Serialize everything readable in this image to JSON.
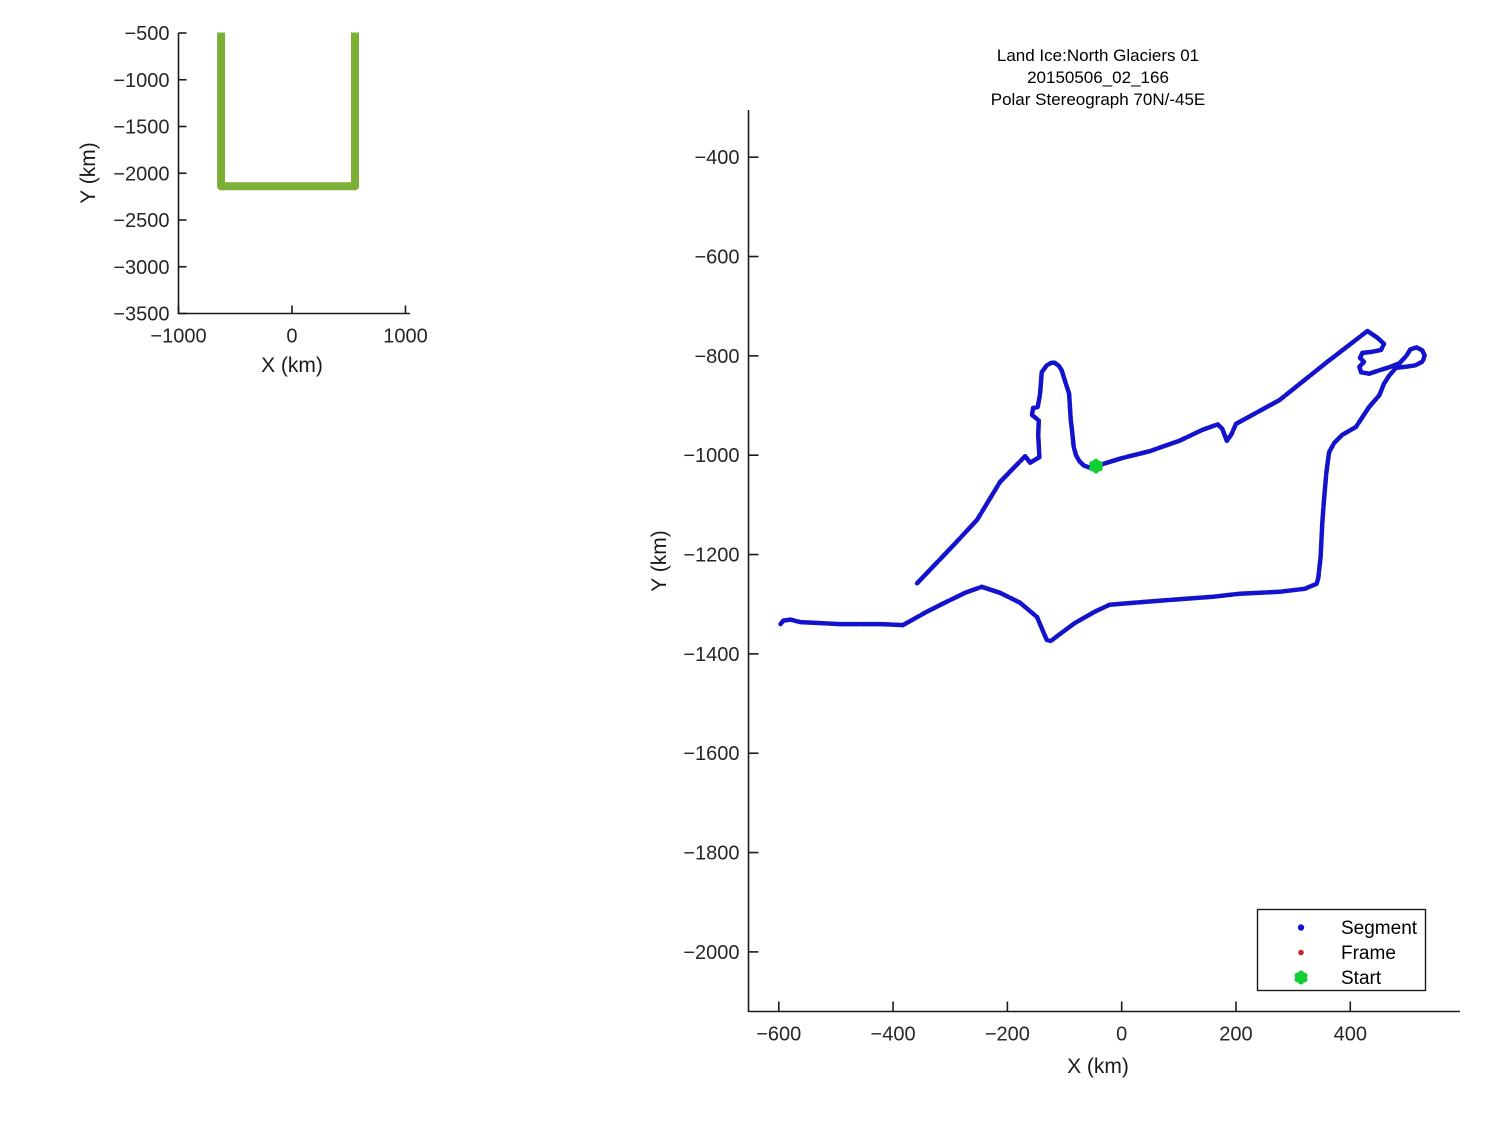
{
  "figure": {
    "background": "#FFFFFF"
  },
  "chart_data": [
    {
      "name": "overview-locator",
      "type": "line",
      "title": "",
      "xlabel": "X (km)",
      "ylabel": "Y (km)",
      "xlim": [
        -1000,
        1040
      ],
      "ylim": [
        -3500,
        -500
      ],
      "grid": false,
      "xticks": [
        -1000,
        0,
        1000
      ],
      "xtick_labels": [
        "−1000",
        "0",
        "1000"
      ],
      "yticks": [
        -500,
        -1000,
        -1500,
        -2000,
        -2500,
        -3000,
        -3500
      ],
      "ytick_labels": [
        "−500",
        "−1000",
        "−1500",
        "−2000",
        "−2500",
        "−3000",
        "−3500"
      ],
      "series": [
        {
          "name": "coverage-outline",
          "color": "#7CAF35",
          "width": 8,
          "dash": null,
          "points": [
            [
              -625,
              -500
            ],
            [
              -625,
              -2140
            ],
            [
              555,
              -2140
            ],
            [
              555,
              -500
            ]
          ]
        }
      ],
      "markers": []
    },
    {
      "name": "flight-track",
      "type": "line",
      "title_lines": [
        "Land Ice:North Glaciers 01",
        "20150506_02_166",
        "Polar Stereograph 70N/-45E"
      ],
      "xlabel": "X (km)",
      "ylabel": "Y (km)",
      "xlim": [
        -653,
        592
      ],
      "ylim": [
        -2120,
        -305
      ],
      "grid": false,
      "xticks": [
        -600,
        -400,
        -200,
        0,
        200,
        400
      ],
      "xtick_labels": [
        "−600",
        "−400",
        "−200",
        "0",
        "200",
        "400"
      ],
      "yticks": [
        -400,
        -600,
        -800,
        -1000,
        -1200,
        -1400,
        -1600,
        -1800,
        -2000
      ],
      "ytick_labels": [
        "−400",
        "−600",
        "−800",
        "−1000",
        "−1200",
        "−1400",
        "−1600",
        "−1800",
        "−2000"
      ],
      "legend": {
        "position": "bottom-right",
        "entries": [
          {
            "label": "Segment",
            "marker": "dot",
            "color": "#1313CE"
          },
          {
            "label": "Frame",
            "marker": "dot",
            "color": "#CC2222"
          },
          {
            "label": "Start",
            "marker": "burst",
            "color": "#12CF34"
          }
        ]
      },
      "series": [
        {
          "name": "segment-track",
          "color": "#1313CE",
          "width": 4.5,
          "dash": "30 2.2",
          "points": [
            [
              -358,
              -1258
            ],
            [
              -295,
              -1182
            ],
            [
              -253,
              -1130
            ],
            [
              -213,
              -1054
            ],
            [
              -169,
              -1002
            ],
            [
              -160,
              -1015
            ],
            [
              -150,
              -1008
            ],
            [
              -144,
              -1004
            ],
            [
              -146,
              -960
            ],
            [
              -145,
              -930
            ],
            [
              -157,
              -919
            ],
            [
              -155,
              -905
            ],
            [
              -147,
              -903
            ],
            [
              -143,
              -878
            ],
            [
              -141,
              -850
            ],
            [
              -140,
              -833
            ],
            [
              -131,
              -819
            ],
            [
              -123,
              -814
            ],
            [
              -117,
              -814
            ],
            [
              -110,
              -820
            ],
            [
              -105,
              -829
            ],
            [
              -98,
              -855
            ],
            [
              -92,
              -876
            ],
            [
              -89,
              -930
            ],
            [
              -87,
              -950
            ],
            [
              -84,
              -983
            ],
            [
              -80,
              -1000
            ],
            [
              -74,
              -1012
            ],
            [
              -66,
              -1021
            ],
            [
              -56,
              -1025
            ],
            [
              -45,
              -1022
            ],
            [
              -20,
              -1013
            ],
            [
              0,
              -1006
            ],
            [
              49,
              -992
            ],
            [
              101,
              -971
            ],
            [
              141,
              -949
            ],
            [
              168,
              -938
            ],
            [
              176,
              -947
            ],
            [
              184,
              -971
            ],
            [
              192,
              -958
            ],
            [
              200,
              -937
            ],
            [
              276,
              -889
            ],
            [
              360,
              -812
            ],
            [
              430,
              -750
            ],
            [
              447,
              -763
            ],
            [
              459,
              -776
            ],
            [
              454,
              -788
            ],
            [
              437,
              -792
            ],
            [
              421,
              -794
            ],
            [
              417,
              -804
            ],
            [
              424,
              -812
            ],
            [
              416,
              -822
            ],
            [
              419,
              -833
            ],
            [
              433,
              -836
            ],
            [
              451,
              -829
            ],
            [
              468,
              -823
            ],
            [
              486,
              -815
            ],
            [
              498,
              -800
            ],
            [
              505,
              -787
            ],
            [
              516,
              -783
            ],
            [
              526,
              -789
            ],
            [
              530,
              -799
            ],
            [
              527,
              -811
            ],
            [
              514,
              -819
            ],
            [
              497,
              -822
            ],
            [
              480,
              -824
            ],
            [
              468,
              -840
            ],
            [
              459,
              -856
            ],
            [
              451,
              -879
            ],
            [
              433,
              -903
            ],
            [
              410,
              -943
            ],
            [
              386,
              -959
            ],
            [
              372,
              -975
            ],
            [
              363,
              -994
            ],
            [
              358,
              -1036
            ],
            [
              354,
              -1090
            ],
            [
              351,
              -1136
            ],
            [
              348,
              -1205
            ],
            [
              344,
              -1247
            ],
            [
              341,
              -1259
            ],
            [
              320,
              -1269
            ],
            [
              276,
              -1275
            ],
            [
              206,
              -1279
            ],
            [
              159,
              -1285
            ],
            [
              66,
              -1293
            ],
            [
              -21,
              -1301
            ],
            [
              -47,
              -1315
            ],
            [
              -82,
              -1338
            ],
            [
              -108,
              -1360
            ],
            [
              -124,
              -1374
            ],
            [
              -131,
              -1372
            ],
            [
              -143,
              -1340
            ],
            [
              -148,
              -1326
            ],
            [
              -178,
              -1297
            ],
            [
              -213,
              -1277
            ],
            [
              -245,
              -1265
            ],
            [
              -274,
              -1277
            ],
            [
              -306,
              -1295
            ],
            [
              -341,
              -1315
            ],
            [
              -370,
              -1334
            ],
            [
              -383,
              -1342
            ],
            [
              -423,
              -1340
            ],
            [
              -493,
              -1340
            ],
            [
              -562,
              -1336
            ],
            [
              -580,
              -1331
            ],
            [
              -592,
              -1333
            ],
            [
              -597,
              -1340
            ]
          ]
        }
      ],
      "markers": [
        {
          "name": "start-marker",
          "shape": "burst",
          "x": -45,
          "y": -1022,
          "color": "#12CF34",
          "scale": 1.05
        }
      ]
    }
  ]
}
